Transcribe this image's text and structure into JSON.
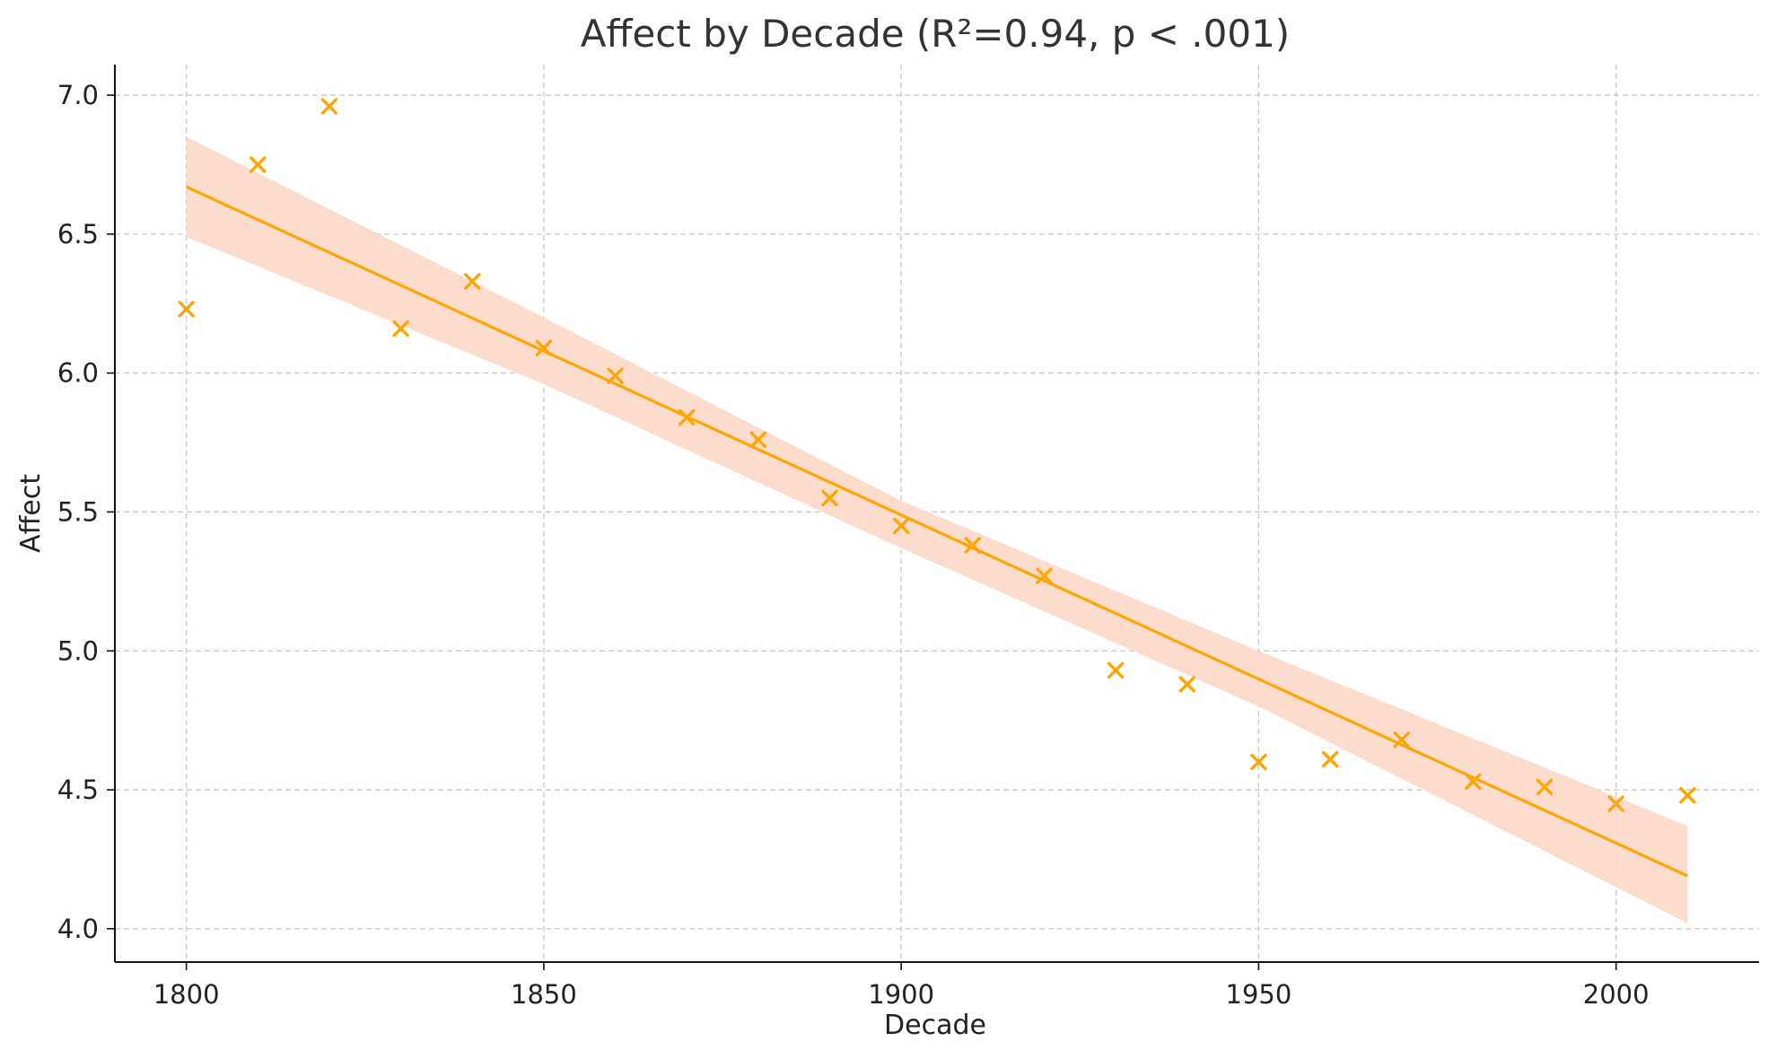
{
  "chart_data": {
    "type": "scatter",
    "title": "Affect by Decade (R²=0.94, p < .001)",
    "xlabel": "Decade",
    "ylabel": "Affect",
    "xlim": [
      1790,
      2020
    ],
    "ylim": [
      3.88,
      7.11
    ],
    "x_ticks": [
      1800,
      1850,
      1900,
      1950,
      2000
    ],
    "y_ticks": [
      4.0,
      4.5,
      5.0,
      5.5,
      6.0,
      6.5,
      7.0
    ],
    "grid": true,
    "marker": "x",
    "points": [
      {
        "x": 1800,
        "y": 6.23
      },
      {
        "x": 1810,
        "y": 6.75
      },
      {
        "x": 1820,
        "y": 6.96
      },
      {
        "x": 1830,
        "y": 6.16
      },
      {
        "x": 1840,
        "y": 6.33
      },
      {
        "x": 1850,
        "y": 6.09
      },
      {
        "x": 1860,
        "y": 5.99
      },
      {
        "x": 1870,
        "y": 5.84
      },
      {
        "x": 1880,
        "y": 5.76
      },
      {
        "x": 1890,
        "y": 5.55
      },
      {
        "x": 1900,
        "y": 5.45
      },
      {
        "x": 1910,
        "y": 5.38
      },
      {
        "x": 1920,
        "y": 5.27
      },
      {
        "x": 1930,
        "y": 4.93
      },
      {
        "x": 1940,
        "y": 4.88
      },
      {
        "x": 1950,
        "y": 4.6
      },
      {
        "x": 1960,
        "y": 4.61
      },
      {
        "x": 1970,
        "y": 4.68
      },
      {
        "x": 1980,
        "y": 4.53
      },
      {
        "x": 1990,
        "y": 4.51
      },
      {
        "x": 2000,
        "y": 4.45
      },
      {
        "x": 2010,
        "y": 4.48
      }
    ],
    "regression": {
      "x": [
        1800,
        2010
      ],
      "y": [
        6.67,
        4.19
      ],
      "ci_x": [
        1800,
        1850,
        1900,
        1950,
        2010
      ],
      "ci_lower": [
        6.49,
        5.96,
        5.37,
        4.8,
        4.02
      ],
      "ci_upper": [
        6.85,
        6.2,
        5.54,
        5.0,
        4.37
      ]
    },
    "colors": {
      "points": "#FFA500",
      "line": "#FFA500",
      "band": "#FCD9C8"
    }
  }
}
